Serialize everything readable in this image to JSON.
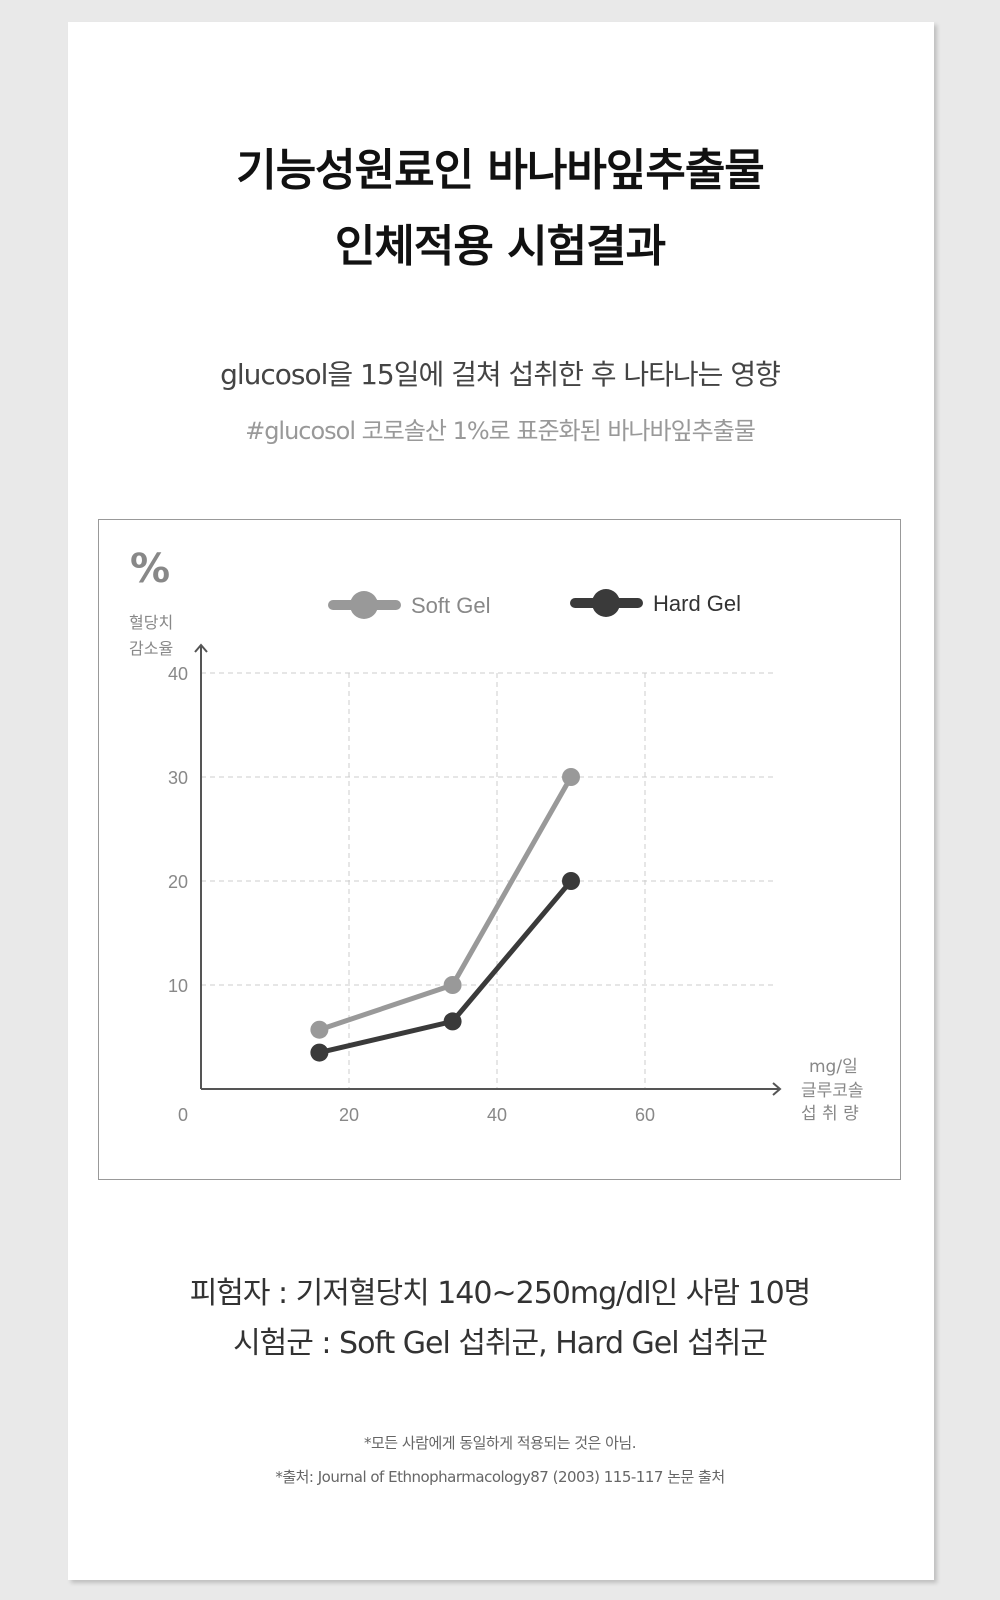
{
  "title": {
    "line1": "기능성원료인 바나바잎추출물",
    "line2": "인체적용 시험결과"
  },
  "subtitle": "glucosol을 15일에 걸쳐 섭취한 후 나타나는 영향",
  "hashtag": "#glucosol 코로솔산 1%로 표준화된 바나바잎추출물",
  "chart_data": {
    "type": "line",
    "ylabel": {
      "unit": "%",
      "line1": "혈당치",
      "line2": "감소율"
    },
    "xlabel": {
      "unit": "mg/일",
      "line1": "글루코솔",
      "line2": "섭 취 량"
    },
    "xlim": [
      0,
      70
    ],
    "ylim": [
      0,
      40
    ],
    "xticks": [
      "0",
      "20",
      "40",
      "60"
    ],
    "yticks": [
      "10",
      "20",
      "30",
      "40"
    ],
    "grid": true,
    "legend_position": "top",
    "series": [
      {
        "name": "Soft Gel",
        "color": "#999999",
        "x": [
          16,
          34,
          50
        ],
        "y": [
          5.7,
          10,
          30
        ]
      },
      {
        "name": "Hard Gel",
        "color": "#3a3a3a",
        "x": [
          16,
          34,
          50
        ],
        "y": [
          3.5,
          6.5,
          20
        ]
      }
    ]
  },
  "info": {
    "line1": "피험자 : 기저혈당치 140~250mg/dl인 사람 10명",
    "line2": "시험군 : Soft Gel 섭취군, Hard Gel 섭취군"
  },
  "notes": {
    "line1": "*모든 사람에게 동일하게 적용되는 것은 아님.",
    "line2": "*출처: Journal of Ethnopharmacology87 (2003) 115-117 논문 출처"
  }
}
